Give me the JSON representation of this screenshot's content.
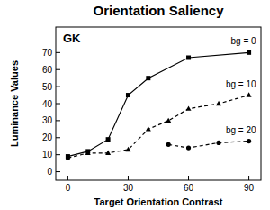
{
  "chart_data": {
    "type": "line",
    "title": "Orientation Saliency",
    "annotation": "GK",
    "x_label": "Target Orientation Contrast",
    "y_label": "Luminance Values",
    "xlim": [
      -6,
      96
    ],
    "xticks": [
      0,
      30,
      60,
      90
    ],
    "ylim": [
      -5,
      85
    ],
    "yticks": [
      0,
      10,
      20,
      30,
      40,
      50,
      60,
      70
    ],
    "grid": false,
    "series": [
      {
        "name": "bg = 0",
        "color": "#000000",
        "marker": "square",
        "line_style": "solid",
        "x": [
          0,
          10,
          20,
          30,
          40,
          60,
          90
        ],
        "values": [
          9,
          12,
          19,
          45,
          55,
          67,
          70
        ]
      },
      {
        "name": "bg = 10",
        "color": "#000000",
        "marker": "triangle",
        "line_style": "dashed",
        "x": [
          0,
          10,
          20,
          30,
          40,
          50,
          60,
          75,
          90
        ],
        "values": [
          8,
          11,
          11,
          13,
          25,
          30,
          37,
          40,
          45
        ]
      },
      {
        "name": "bg = 20",
        "color": "#000000",
        "marker": "circle",
        "line_style": "dashed",
        "x": [
          50,
          60,
          75,
          90
        ],
        "values": [
          16,
          14,
          17,
          18
        ]
      }
    ]
  }
}
